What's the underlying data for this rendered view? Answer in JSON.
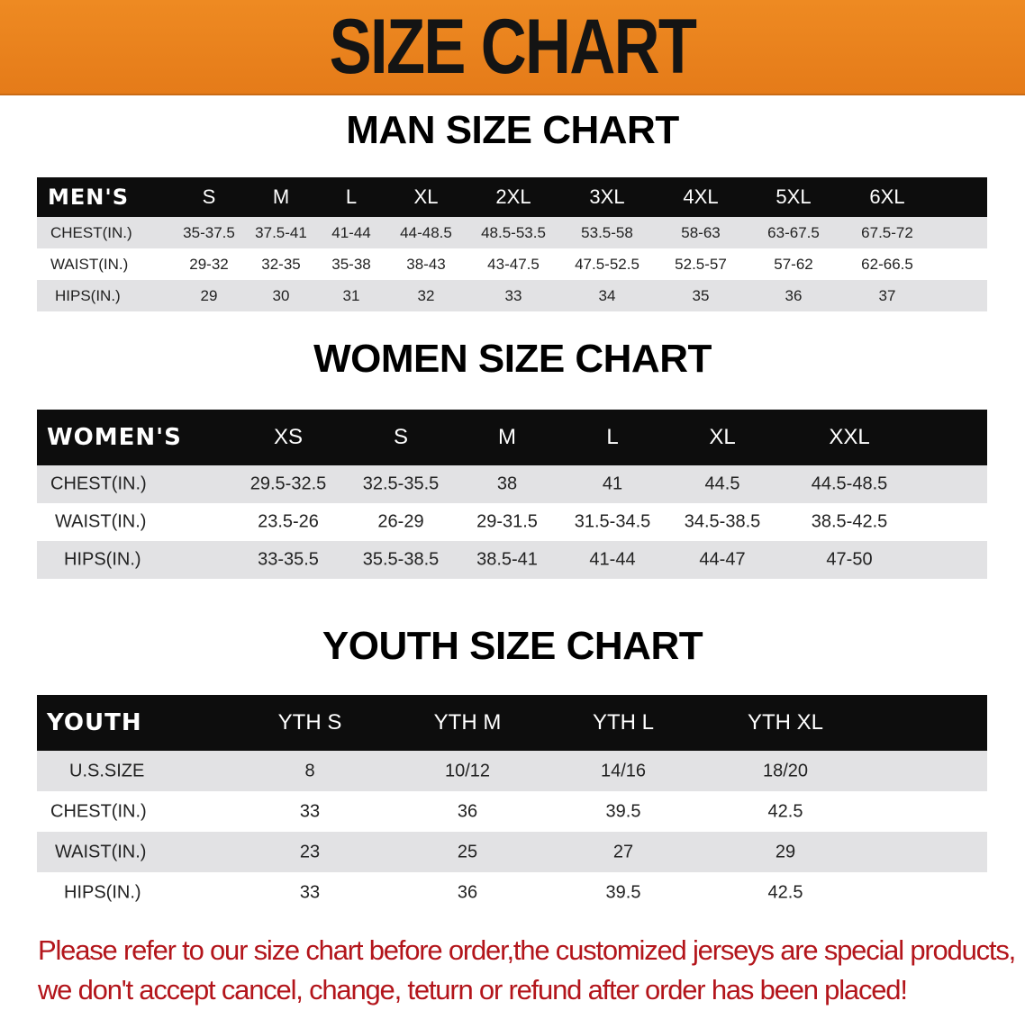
{
  "title": "SIZE CHART",
  "men": {
    "section_title": "MAN SIZE CHART",
    "header_label": "MEN'S",
    "sizes": [
      "S",
      "M",
      "L",
      "XL",
      "2XL",
      "3XL",
      "4XL",
      "5XL",
      "6XL"
    ],
    "rows": [
      {
        "label": "CHEST(IN.)",
        "values": [
          "35-37.5",
          "37.5-41",
          "41-44",
          "44-48.5",
          "48.5-53.5",
          "53.5-58",
          "58-63",
          "63-67.5",
          "67.5-72"
        ]
      },
      {
        "label": "WAIST(IN.)",
        "values": [
          "29-32",
          "32-35",
          "35-38",
          "38-43",
          "43-47.5",
          "47.5-52.5",
          "52.5-57",
          "57-62",
          "62-66.5"
        ]
      },
      {
        "label": "HIPS(IN.)",
        "values": [
          "29",
          "30",
          "31",
          "32",
          "33",
          "34",
          "35",
          "36",
          "37"
        ]
      }
    ]
  },
  "women": {
    "section_title": "WOMEN SIZE CHART",
    "header_label": "WOMEN'S",
    "sizes": [
      "XS",
      "S",
      "M",
      "L",
      "XL",
      "XXL"
    ],
    "rows": [
      {
        "label": "CHEST(IN.)",
        "values": [
          "29.5-32.5",
          "32.5-35.5",
          "38",
          "41",
          "44.5",
          "44.5-48.5"
        ]
      },
      {
        "label": "WAIST(IN.)",
        "values": [
          "23.5-26",
          "26-29",
          "29-31.5",
          "31.5-34.5",
          "34.5-38.5",
          "38.5-42.5"
        ]
      },
      {
        "label": "HIPS(IN.)",
        "values": [
          "33-35.5",
          "35.5-38.5",
          "38.5-41",
          "41-44",
          "44-47",
          "47-50"
        ]
      }
    ]
  },
  "youth": {
    "section_title": "YOUTH SIZE CHART",
    "header_label": "YOUTH",
    "sizes": [
      "YTH S",
      "YTH M",
      "YTH L",
      "YTH XL"
    ],
    "rows": [
      {
        "label": "U.S.SIZE",
        "values": [
          "8",
          "10/12",
          "14/16",
          "18/20"
        ]
      },
      {
        "label": "CHEST(IN.)",
        "values": [
          "33",
          "36",
          "39.5",
          "42.5"
        ]
      },
      {
        "label": "WAIST(IN.)",
        "values": [
          "23",
          "25",
          "27",
          "29"
        ]
      },
      {
        "label": "HIPS(IN.)",
        "values": [
          "33",
          "36",
          "39.5",
          "42.5"
        ]
      }
    ]
  },
  "notice": {
    "line1": "Please refer to our size chart before order,the customized jerseys are special products,",
    "line2": "we don't accept cancel, change, teturn or refund after order has been placed!"
  },
  "colors": {
    "banner": "#e8801e",
    "header_bg": "#0d0d0d",
    "row_alt": "#e2e2e4",
    "notice": "#b3151b"
  }
}
